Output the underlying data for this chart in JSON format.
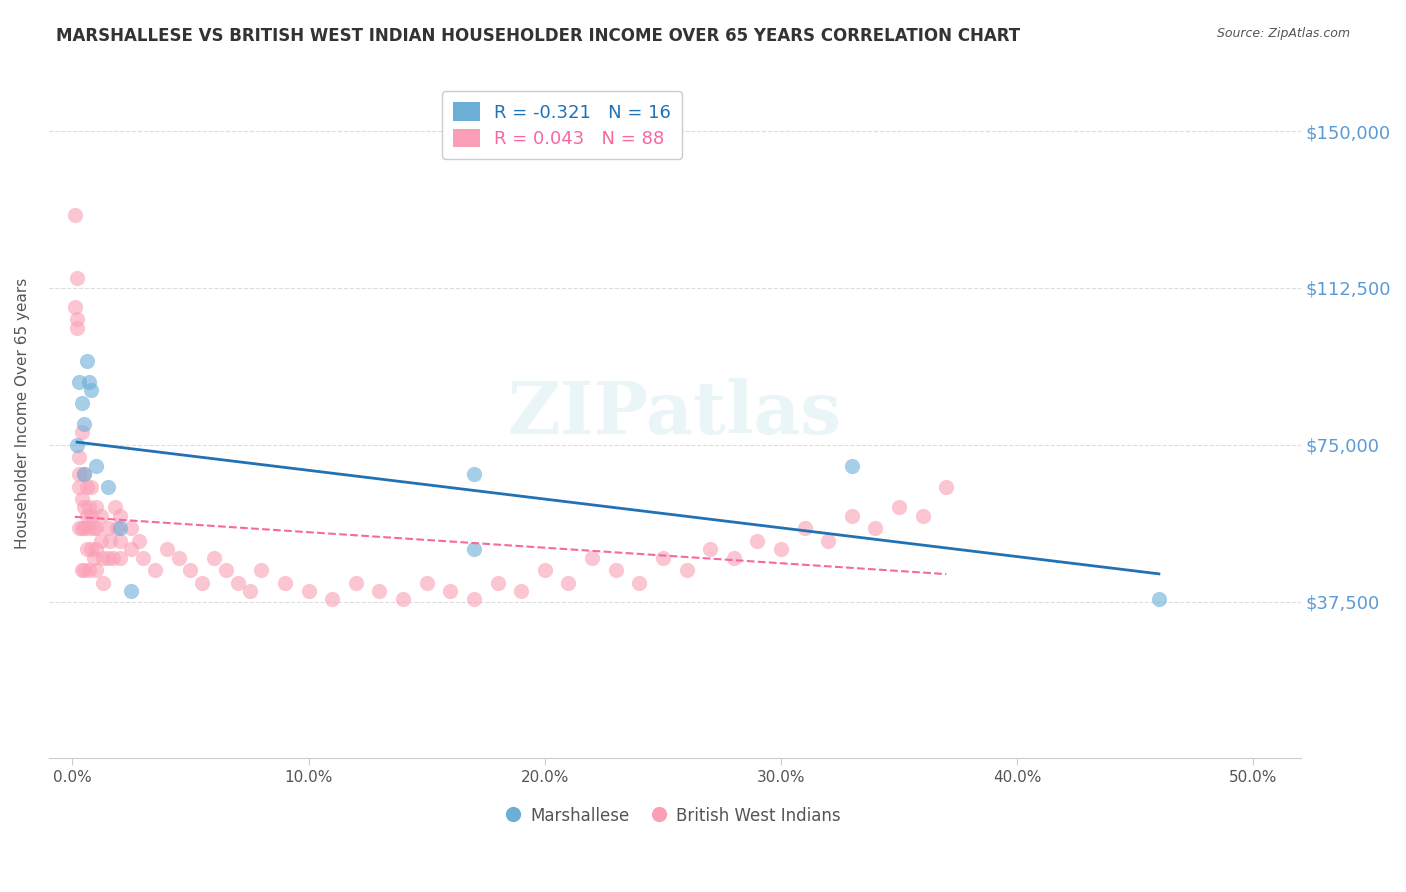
{
  "title": "MARSHALLESE VS BRITISH WEST INDIAN HOUSEHOLDER INCOME OVER 65 YEARS CORRELATION CHART",
  "source": "Source: ZipAtlas.com",
  "ylabel": "Householder Income Over 65 years",
  "xlabel_ticks": [
    "0.0%",
    "10.0%",
    "20.0%",
    "30.0%",
    "40.0%",
    "50.0%"
  ],
  "xlabel_values": [
    0.0,
    0.1,
    0.2,
    0.3,
    0.4,
    0.5
  ],
  "ytick_labels": [
    "$37,500",
    "$75,000",
    "$112,500",
    "$150,000"
  ],
  "ytick_values": [
    37500,
    75000,
    112500,
    150000
  ],
  "ylim": [
    0,
    165000
  ],
  "xlim": [
    -0.01,
    0.52
  ],
  "watermark": "ZIPatlas",
  "legend_blue_r": "-0.321",
  "legend_blue_n": "16",
  "legend_pink_r": "0.043",
  "legend_pink_n": "88",
  "legend_labels": [
    "Marshallese",
    "British West Indians"
  ],
  "blue_color": "#6baed6",
  "pink_color": "#fa9fb5",
  "blue_line_color": "#2171b5",
  "pink_line_color": "#f768a1",
  "marshallese_x": [
    0.002,
    0.003,
    0.004,
    0.005,
    0.005,
    0.006,
    0.007,
    0.008,
    0.01,
    0.015,
    0.02,
    0.025,
    0.17,
    0.17,
    0.33,
    0.46
  ],
  "marshallese_y": [
    75000,
    90000,
    85000,
    80000,
    68000,
    95000,
    90000,
    88000,
    70000,
    65000,
    55000,
    40000,
    68000,
    50000,
    70000,
    38000
  ],
  "bwi_x": [
    0.001,
    0.001,
    0.002,
    0.002,
    0.002,
    0.003,
    0.003,
    0.003,
    0.003,
    0.004,
    0.004,
    0.004,
    0.004,
    0.005,
    0.005,
    0.005,
    0.005,
    0.006,
    0.006,
    0.006,
    0.007,
    0.007,
    0.007,
    0.008,
    0.008,
    0.008,
    0.009,
    0.009,
    0.01,
    0.01,
    0.01,
    0.01,
    0.012,
    0.012,
    0.013,
    0.013,
    0.015,
    0.015,
    0.016,
    0.017,
    0.018,
    0.019,
    0.02,
    0.02,
    0.02,
    0.025,
    0.025,
    0.028,
    0.03,
    0.035,
    0.04,
    0.045,
    0.05,
    0.055,
    0.06,
    0.065,
    0.07,
    0.075,
    0.08,
    0.09,
    0.1,
    0.11,
    0.12,
    0.13,
    0.14,
    0.15,
    0.16,
    0.17,
    0.18,
    0.19,
    0.2,
    0.21,
    0.22,
    0.23,
    0.24,
    0.25,
    0.26,
    0.27,
    0.28,
    0.29,
    0.3,
    0.31,
    0.32,
    0.33,
    0.34,
    0.35,
    0.36,
    0.37
  ],
  "bwi_y": [
    130000,
    108000,
    105000,
    103000,
    115000,
    68000,
    72000,
    65000,
    55000,
    78000,
    62000,
    55000,
    45000,
    68000,
    60000,
    55000,
    45000,
    65000,
    58000,
    50000,
    60000,
    55000,
    45000,
    65000,
    58000,
    50000,
    55000,
    48000,
    60000,
    55000,
    50000,
    45000,
    58000,
    52000,
    48000,
    42000,
    55000,
    48000,
    52000,
    48000,
    60000,
    55000,
    58000,
    52000,
    48000,
    55000,
    50000,
    52000,
    48000,
    45000,
    50000,
    48000,
    45000,
    42000,
    48000,
    45000,
    42000,
    40000,
    45000,
    42000,
    40000,
    38000,
    42000,
    40000,
    38000,
    42000,
    40000,
    38000,
    42000,
    40000,
    45000,
    42000,
    48000,
    45000,
    42000,
    48000,
    45000,
    50000,
    48000,
    52000,
    50000,
    55000,
    52000,
    58000,
    55000,
    60000,
    58000,
    65000
  ]
}
